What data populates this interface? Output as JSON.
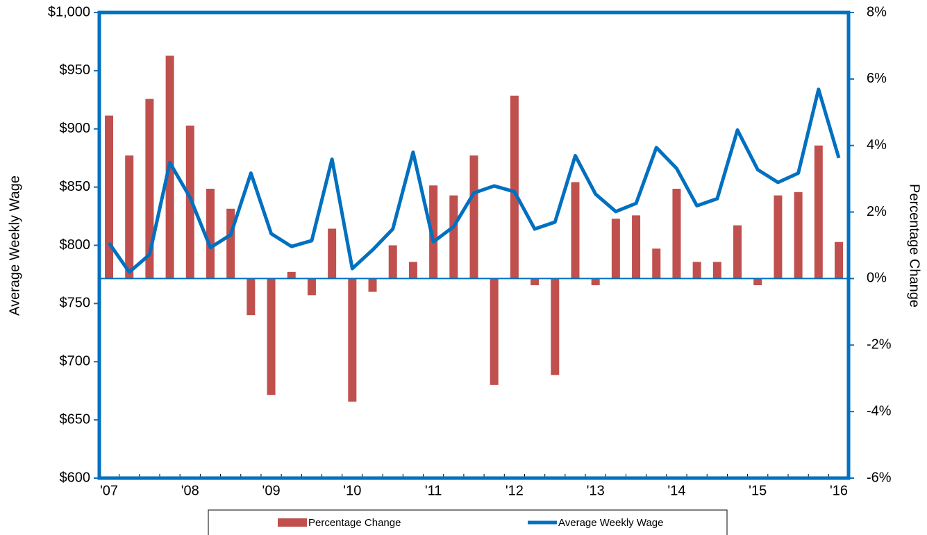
{
  "chart_data": {
    "type": "bar-line",
    "y_label": "Average Weekly Wage",
    "y2_label": "Percentage Change",
    "categories": [
      "'07",
      null,
      null,
      null,
      "'08",
      null,
      null,
      null,
      "'09",
      null,
      null,
      null,
      "'10",
      null,
      null,
      null,
      "'11",
      null,
      null,
      null,
      "'12",
      null,
      null,
      null,
      "'13",
      null,
      null,
      null,
      "'14",
      null,
      null,
      null,
      "'15",
      null,
      null,
      null,
      "'16"
    ],
    "series": [
      {
        "name": "Percentage Change",
        "type": "bar",
        "axis": "y2",
        "color": "#c0504d",
        "values": [
          4.9,
          3.7,
          5.4,
          6.7,
          4.6,
          2.7,
          2.1,
          -1.1,
          -3.5,
          0.2,
          -0.5,
          1.5,
          -3.7,
          -0.4,
          1.0,
          0.5,
          2.8,
          2.5,
          3.7,
          -3.2,
          5.5,
          -0.2,
          -2.9,
          2.9,
          -0.2,
          1.8,
          1.9,
          0.9,
          2.7,
          0.5,
          0.5,
          1.6,
          -0.2,
          2.5,
          2.6,
          4.0,
          1.1
        ]
      },
      {
        "name": "Average Weekly Wage",
        "type": "line",
        "axis": "y",
        "color": "#0070c0",
        "values": [
          802,
          777,
          792,
          871,
          841,
          798,
          809,
          862,
          810,
          799,
          804,
          874,
          780,
          796,
          814,
          880,
          803,
          816,
          845,
          851,
          846,
          814,
          820,
          877,
          844,
          829,
          836,
          884,
          866,
          834,
          840,
          899,
          865,
          854,
          862,
          934,
          875
        ]
      }
    ],
    "ylim": [
      600,
      1000
    ],
    "yticks": [
      {
        "value": 600,
        "label": "$600"
      },
      {
        "value": 650,
        "label": "$650"
      },
      {
        "value": 700,
        "label": "$700"
      },
      {
        "value": 750,
        "label": "$750"
      },
      {
        "value": 800,
        "label": "$800"
      },
      {
        "value": 850,
        "label": "$850"
      },
      {
        "value": 900,
        "label": "$900"
      },
      {
        "value": 950,
        "label": "$950"
      },
      {
        "value": 1000,
        "label": "$1,000"
      }
    ],
    "y2lim": [
      -6,
      8
    ],
    "y2ticks": [
      {
        "value": -6,
        "label": "-6%"
      },
      {
        "value": -4,
        "label": "-4%"
      },
      {
        "value": -2,
        "label": "-2%"
      },
      {
        "value": 0,
        "label": "0%"
      },
      {
        "value": 2,
        "label": "2%"
      },
      {
        "value": 4,
        "label": "4%"
      },
      {
        "value": 6,
        "label": "6%"
      },
      {
        "value": 8,
        "label": "8%"
      }
    ],
    "frame_color": "#0070c0"
  }
}
